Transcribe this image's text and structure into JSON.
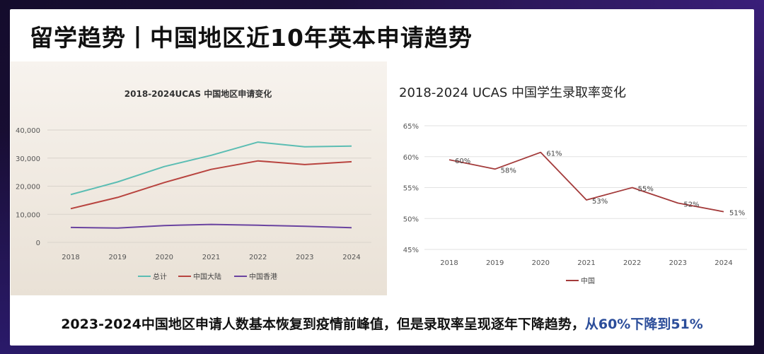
{
  "slide_title": "留学趋势丨中国地区近10年英本申请趋势",
  "footer": {
    "text": "2023-2024中国地区申请人数基本恢复到疫情前峰值，但是录取率呈现逐年下降趋势，",
    "highlight": "从60%下降到51%"
  },
  "colors": {
    "total": "#5bbdb3",
    "mainland": "#b8443f",
    "hongkong": "#6a43a0",
    "china_rate": "#a33a3a",
    "highlight": "#2b4d9a"
  },
  "chart_data": [
    {
      "type": "line",
      "title": "2018-2024UCAS 中国地区申请变化",
      "x": [
        "2018",
        "2019",
        "2020",
        "2021",
        "2022",
        "2023",
        "2024"
      ],
      "ylim": [
        0,
        40000
      ],
      "yticks": [
        "0",
        "10,000",
        "20,000",
        "30,000",
        "40,000"
      ],
      "ytick_values": [
        0,
        10000,
        20000,
        30000,
        40000
      ],
      "grid": true,
      "legend_position": "bottom",
      "series": [
        {
          "name": "总计",
          "color_key": "total",
          "values": [
            17000,
            21500,
            27000,
            31000,
            35700,
            34000,
            34300
          ]
        },
        {
          "name": "中国大陆",
          "color_key": "mainland",
          "values": [
            12000,
            16000,
            21300,
            26000,
            29000,
            27700,
            28700
          ]
        },
        {
          "name": "中国香港",
          "color_key": "hongkong",
          "values": [
            5300,
            5100,
            6000,
            6400,
            6100,
            5700,
            5200
          ]
        }
      ]
    },
    {
      "type": "line",
      "title": "2018-2024 UCAS  中国学生录取率变化",
      "x": [
        "2018",
        "2019",
        "2020",
        "2021",
        "2022",
        "2023",
        "2024"
      ],
      "ylim": [
        45,
        65
      ],
      "yticks": [
        "45%",
        "50%",
        "55%",
        "60%",
        "65%"
      ],
      "ytick_values": [
        45,
        50,
        55,
        60,
        65
      ],
      "grid": true,
      "legend_position": "bottom",
      "series": [
        {
          "name": "中国",
          "color_key": "china_rate",
          "values": [
            59.5,
            58,
            60.7,
            53,
            55,
            52.5,
            51.1
          ],
          "labels": [
            "60%",
            "58%",
            "61%",
            "53%",
            "55%",
            "52%",
            "51%"
          ]
        }
      ]
    }
  ]
}
